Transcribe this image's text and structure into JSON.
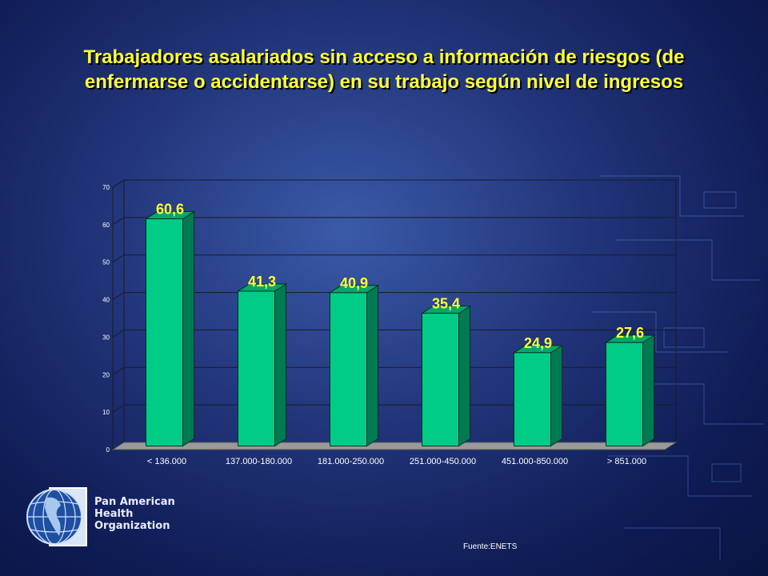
{
  "slide": {
    "title_line1": "Trabajadores asalariados sin acceso a información de riesgos (de",
    "title_line2": "enfermarse o accidentarse) en su trabajo según nivel de ingresos",
    "source": "Fuente:ENETS"
  },
  "org": {
    "line1": "Pan American",
    "line2": "Health",
    "line3": "Organization"
  },
  "colors": {
    "background_center": "#3a5aa8",
    "background_edge": "#0a1442",
    "bar_face": "#00cc88",
    "bar_side": "#007a50",
    "bar_top": "#00a86e",
    "floor": "#9a9a9a",
    "title": "#ffff33",
    "data_label": "#ffff33",
    "axis_text": "#ffffff",
    "grid": "#1a1a2a"
  },
  "chart_data": {
    "type": "bar",
    "categories": [
      "< 136.000",
      "137.000-180.000",
      "181.000-250.000",
      "251.000-450.000",
      "451.000-850.000",
      "> 851.000"
    ],
    "values": [
      60.6,
      41.3,
      40.9,
      35.4,
      24.9,
      27.6
    ],
    "value_labels": [
      "60,6",
      "41,3",
      "40,9",
      "35,4",
      "24,9",
      "27,6"
    ],
    "ylim": [
      0,
      70
    ],
    "yticks": [
      "0",
      "10",
      "20",
      "30",
      "40",
      "50",
      "60",
      "70"
    ],
    "grid": true,
    "legend": "none",
    "style": "3d"
  }
}
